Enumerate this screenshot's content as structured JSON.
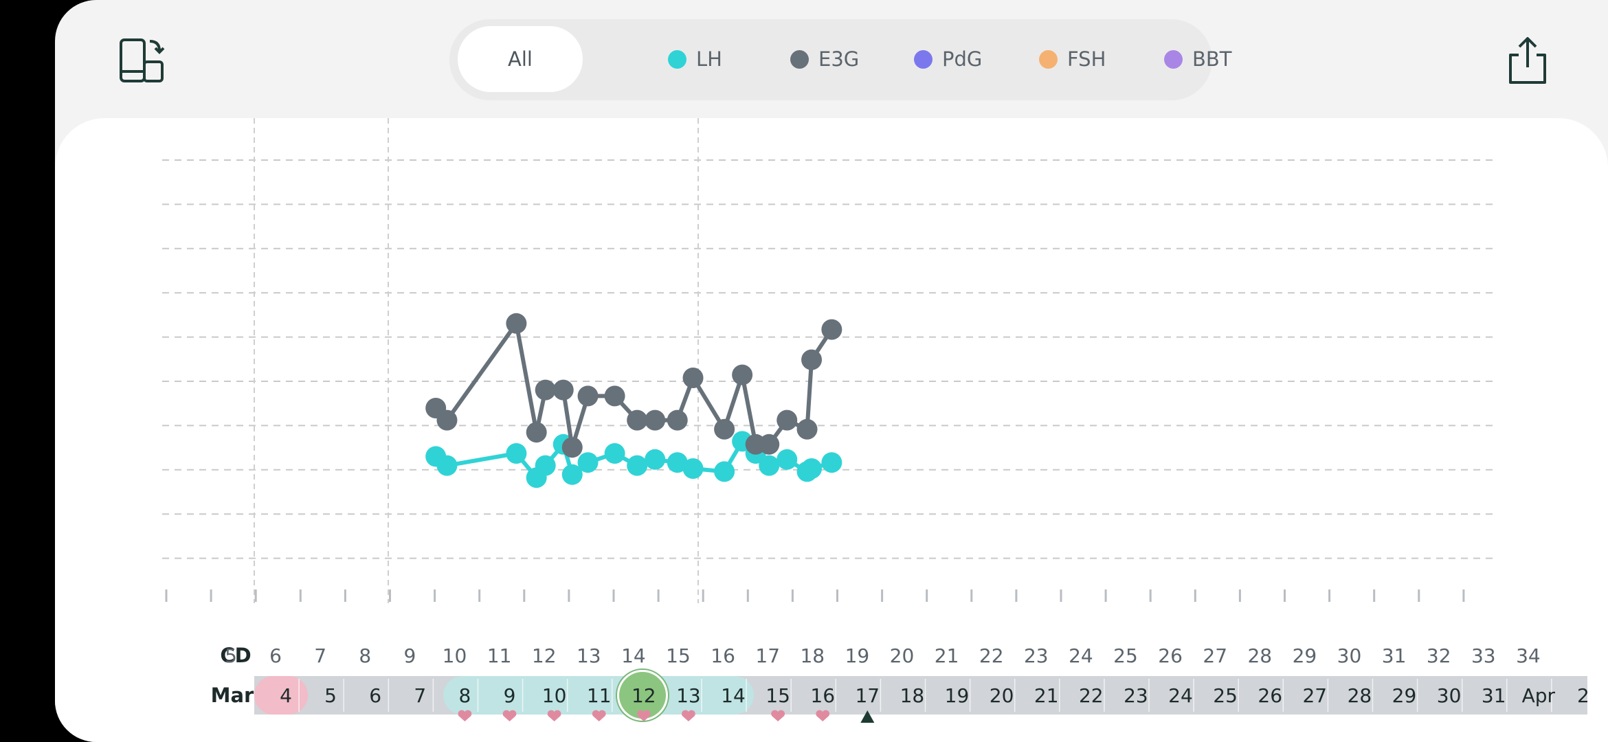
{
  "header": {
    "rotate_icon": "rotate-phone-icon",
    "share_icon": "share-icon"
  },
  "filters": [
    {
      "label": "All",
      "selected": true,
      "color": null
    },
    {
      "label": "LH",
      "selected": false,
      "color": "#2fd3d6"
    },
    {
      "label": "E3G",
      "selected": false,
      "color": "#67717a"
    },
    {
      "label": "PdG",
      "selected": false,
      "color": "#7b78ee"
    },
    {
      "label": "FSH",
      "selected": false,
      "color": "#f5b171"
    },
    {
      "label": "BBT",
      "selected": false,
      "color": "#a986e6"
    }
  ],
  "chart_data": {
    "type": "line",
    "cycle_day_row_label": "CD",
    "cycle_days": [
      "5",
      "6",
      "7",
      "8",
      "9",
      "10",
      "11",
      "12",
      "13",
      "14",
      "15",
      "16",
      "17",
      "18",
      "19",
      "20",
      "21",
      "22",
      "23",
      "24",
      "25",
      "26",
      "27",
      "28",
      "29",
      "30",
      "31",
      "32",
      "33",
      "34"
    ],
    "date_row_month": "Mar",
    "dates": [
      "4",
      "5",
      "6",
      "7",
      "8",
      "9",
      "10",
      "11",
      "12",
      "13",
      "14",
      "15",
      "16",
      "17",
      "18",
      "19",
      "20",
      "21",
      "22",
      "23",
      "24",
      "25",
      "26",
      "27",
      "28",
      "29",
      "30",
      "31",
      "Apr",
      "2"
    ],
    "period_days": [
      "4"
    ],
    "fertile_window_days": [
      "8",
      "9",
      "10",
      "11",
      "12",
      "13",
      "14"
    ],
    "peak_day": "12",
    "today_marker": "17",
    "heart_days": [
      "8",
      "9",
      "10",
      "11",
      "12",
      "13",
      "15",
      "16"
    ],
    "series": [
      {
        "name": "E3G",
        "color": "#67717a",
        "points": [
          [
            9.55,
            1.0
          ],
          [
            9.8,
            0.8
          ],
          [
            11.35,
            2.4
          ],
          [
            11.8,
            0.6
          ],
          [
            12.0,
            1.3
          ],
          [
            12.4,
            1.3
          ],
          [
            12.6,
            0.35
          ],
          [
            12.95,
            1.2
          ],
          [
            13.55,
            1.2
          ],
          [
            14.05,
            0.8
          ],
          [
            14.45,
            0.8
          ],
          [
            14.95,
            0.8
          ],
          [
            15.3,
            1.5
          ],
          [
            16.0,
            0.65
          ],
          [
            16.4,
            1.55
          ],
          [
            16.7,
            0.4
          ],
          [
            17.0,
            0.4
          ],
          [
            17.4,
            0.8
          ],
          [
            17.85,
            0.65
          ],
          [
            17.95,
            1.8
          ],
          [
            18.4,
            2.3
          ]
        ]
      },
      {
        "name": "LH",
        "color": "#2fd3d6",
        "points": [
          [
            9.55,
            0.2
          ],
          [
            9.8,
            0.05
          ],
          [
            11.35,
            0.25
          ],
          [
            11.8,
            -0.15
          ],
          [
            12.0,
            0.05
          ],
          [
            12.4,
            0.4
          ],
          [
            12.6,
            -0.1
          ],
          [
            12.95,
            0.1
          ],
          [
            13.55,
            0.25
          ],
          [
            14.05,
            0.05
          ],
          [
            14.45,
            0.15
          ],
          [
            14.95,
            0.1
          ],
          [
            15.3,
            0.0
          ],
          [
            16.0,
            -0.05
          ],
          [
            16.4,
            0.45
          ],
          [
            16.7,
            0.25
          ],
          [
            17.0,
            0.05
          ],
          [
            17.4,
            0.15
          ],
          [
            17.85,
            -0.05
          ],
          [
            17.95,
            0.0
          ],
          [
            18.4,
            0.1
          ]
        ]
      }
    ],
    "ylim": [
      0,
      10
    ],
    "grid": true
  }
}
